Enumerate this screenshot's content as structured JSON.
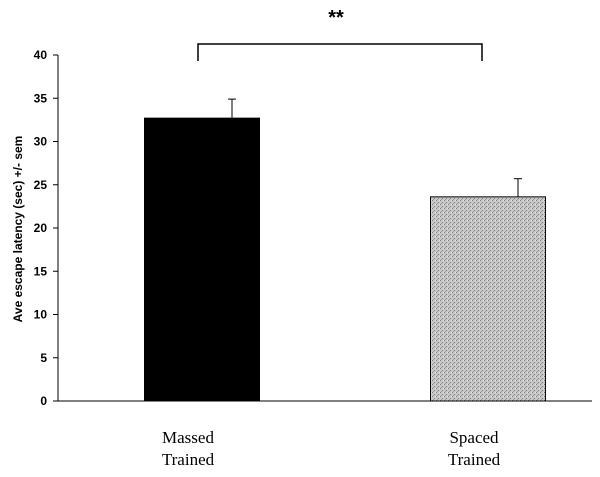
{
  "chart_data": {
    "type": "bar",
    "categories": [
      [
        "Massed",
        "Trained"
      ],
      [
        "Spaced",
        "Trained"
      ]
    ],
    "values": [
      32.7,
      23.6
    ],
    "errors": [
      2.2,
      2.1
    ],
    "colors": [
      "#000000",
      "#bdbdbd"
    ],
    "title": "",
    "xlabel": "",
    "ylabel": "Ave escape latency (sec) +/- sem",
    "ylim": [
      0,
      40
    ],
    "yticks": [
      0,
      5,
      10,
      15,
      20,
      25,
      30,
      35,
      40
    ],
    "grid": false,
    "significance": {
      "label": "**",
      "between": [
        0,
        1
      ]
    }
  }
}
